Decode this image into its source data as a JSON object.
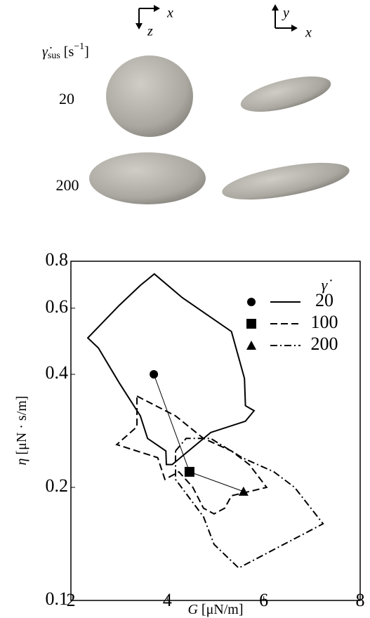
{
  "panel_a": {
    "view_axes": [
      "x",
      "z",
      "y",
      "x"
    ],
    "shear_symbol": "γ̇",
    "shear_sub": "sus",
    "shear_unit": "[s",
    "shear_exp": "−1",
    "shear_close": "]",
    "rows": [
      "20",
      "200"
    ]
  },
  "chart_data": {
    "type": "line",
    "xlabel_symbol": "G",
    "xlabel_unit": "[μN/m]",
    "ylabel_symbol": "η",
    "ylabel_unit": "[μN · s/m]",
    "legend_title": "γ̇",
    "xlim": [
      2,
      8
    ],
    "xticks": [
      2,
      4,
      6,
      8
    ],
    "ylim": [
      0.1,
      0.8
    ],
    "yticks": [
      0.1,
      0.2,
      0.4,
      0.6,
      0.8
    ],
    "yscale": "log",
    "series": [
      {
        "name": "20",
        "marker": "circle",
        "dash": "solid",
        "color": "#000",
        "mean_x": 3.72,
        "mean_y": 0.4,
        "x": [
          2.35,
          3.0,
          3.44,
          3.73,
          4.31,
          5.33,
          5.6,
          5.62,
          5.8,
          5.62,
          4.9,
          4.1,
          3.98,
          3.97,
          3.59,
          3.44,
          3.0,
          2.57
        ],
        "y": [
          0.5,
          0.61,
          0.69,
          0.74,
          0.64,
          0.52,
          0.39,
          0.33,
          0.32,
          0.3,
          0.28,
          0.23,
          0.23,
          0.25,
          0.27,
          0.31,
          0.38,
          0.47
        ]
      },
      {
        "name": "100",
        "marker": "square",
        "dash": "dashed",
        "color": "#000",
        "mean_x": 4.46,
        "mean_y": 0.22,
        "x": [
          3.37,
          4.17,
          4.75,
          5.33,
          5.7,
          6.06,
          5.33,
          5.19,
          4.97,
          4.75,
          4.53,
          4.24,
          3.95,
          3.8,
          2.95,
          3.37
        ],
        "y": [
          0.35,
          0.31,
          0.27,
          0.25,
          0.23,
          0.2,
          0.19,
          0.176,
          0.17,
          0.176,
          0.2,
          0.22,
          0.21,
          0.24,
          0.26,
          0.29
        ]
      },
      {
        "name": "200",
        "marker": "triangle",
        "dash": "dashdot",
        "color": "#000",
        "mean_x": 5.58,
        "mean_y": 0.195,
        "x": [
          4.17,
          4.39,
          4.9,
          5.55,
          6.21,
          6.64,
          7.23,
          5.48,
          4.97,
          4.75,
          4.17
        ],
        "y": [
          0.25,
          0.27,
          0.27,
          0.24,
          0.22,
          0.2,
          0.16,
          0.122,
          0.141,
          0.167,
          0.21
        ]
      }
    ]
  }
}
